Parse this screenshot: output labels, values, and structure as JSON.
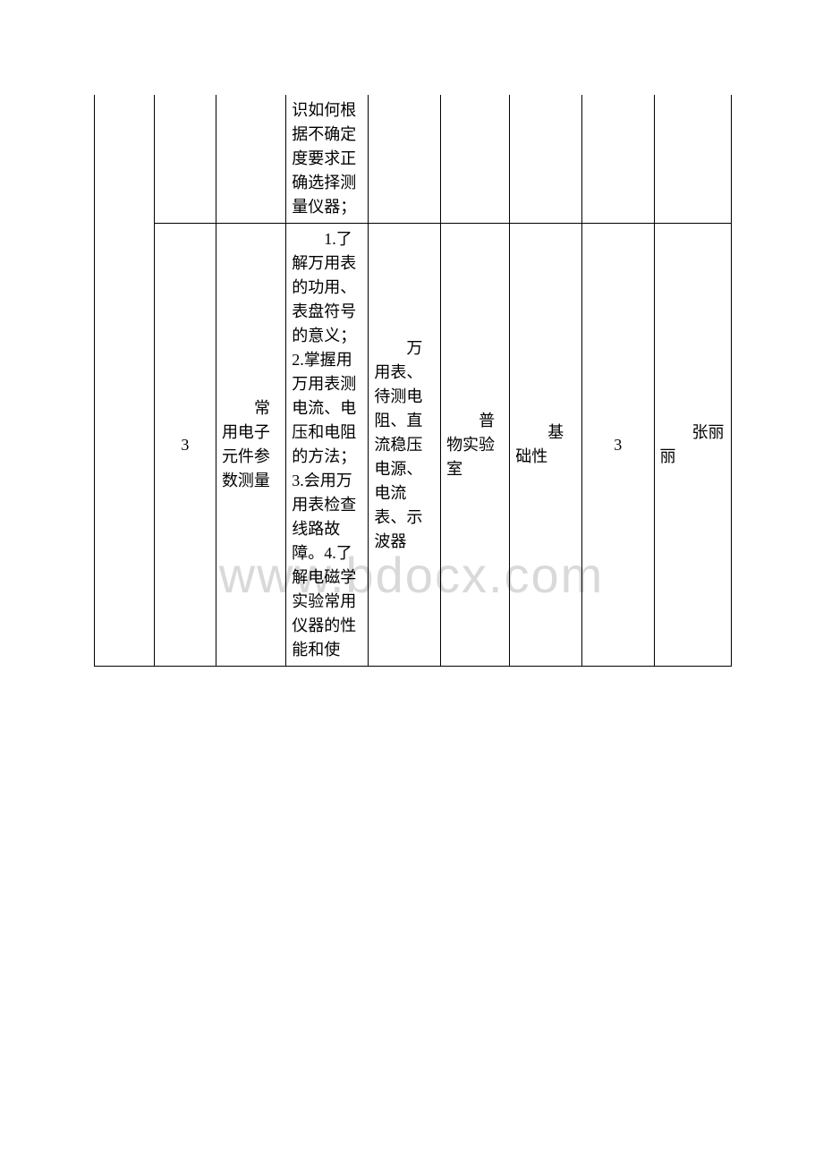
{
  "watermark": "www.bdocx.com",
  "rows": {
    "row1": {
      "col3_text": "识如何根据不确定度要求正确选择测量仪器；"
    },
    "row2": {
      "col1_text": "3",
      "col2_text": "常用电子元件参数测量",
      "col3_text": "1.了解万用表的功用、表盘符号的意义；2.掌握用万用表测电流、电压和电阻的方法；3.会用万用表检查线路故障。4.了解电磁学实验常用仪器的性能和使",
      "col4_text": "万用表、待测电阻、直流稳压电源、电流表、示波器",
      "col5_text": "普物实验室",
      "col6_text": "基础性",
      "col7_text": "3",
      "col8_text": "张丽丽"
    }
  },
  "styling": {
    "page_bg": "#ffffff",
    "border_color": "#000000",
    "text_color": "#000000",
    "watermark_color": "#d9d9d9",
    "font_size": 18,
    "watermark_font_size": 56
  }
}
